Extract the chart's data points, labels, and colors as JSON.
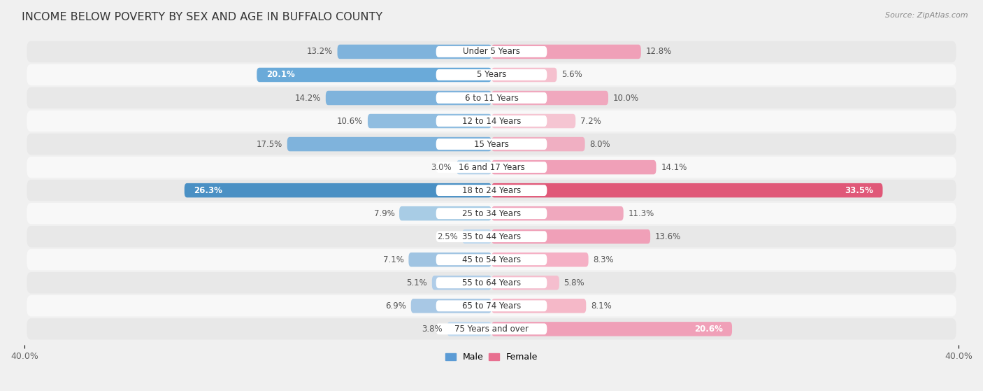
{
  "title": "INCOME BELOW POVERTY BY SEX AND AGE IN BUFFALO COUNTY",
  "source": "Source: ZipAtlas.com",
  "categories": [
    "Under 5 Years",
    "5 Years",
    "6 to 11 Years",
    "12 to 14 Years",
    "15 Years",
    "16 and 17 Years",
    "18 to 24 Years",
    "25 to 34 Years",
    "35 to 44 Years",
    "45 to 54 Years",
    "55 to 64 Years",
    "65 to 74 Years",
    "75 Years and over"
  ],
  "male_values": [
    13.2,
    20.1,
    14.2,
    10.6,
    17.5,
    3.0,
    26.3,
    7.9,
    2.5,
    7.1,
    5.1,
    6.9,
    3.8
  ],
  "female_values": [
    12.8,
    5.6,
    10.0,
    7.2,
    8.0,
    14.1,
    33.5,
    11.3,
    13.6,
    8.3,
    5.8,
    8.1,
    20.6
  ],
  "male_colors": [
    "#7fb3dc",
    "#6aaad9",
    "#7fb3dc",
    "#90bde0",
    "#7fb3dc",
    "#b8d4ea",
    "#4a90c4",
    "#a8cce5",
    "#c0d9ee",
    "#a0c4e2",
    "#b0cde8",
    "#a8c8e5",
    "#c0d9ee"
  ],
  "female_colors": [
    "#f0a0b8",
    "#f5c0ce",
    "#f0a8be",
    "#f5c5d2",
    "#f0afc2",
    "#f0a0b8",
    "#e05878",
    "#f0a8be",
    "#f0a0b8",
    "#f5b0c5",
    "#f5bece",
    "#f5b8c8",
    "#f0a0b8"
  ],
  "axis_max": 40.0,
  "bar_height": 0.62,
  "bg_color": "#f0f0f0",
  "row_odd_color": "#e8e8e8",
  "row_even_color": "#f8f8f8",
  "title_fontsize": 11.5,
  "label_fontsize": 8.5,
  "cat_fontsize": 8.5,
  "tick_fontsize": 9,
  "source_fontsize": 8
}
